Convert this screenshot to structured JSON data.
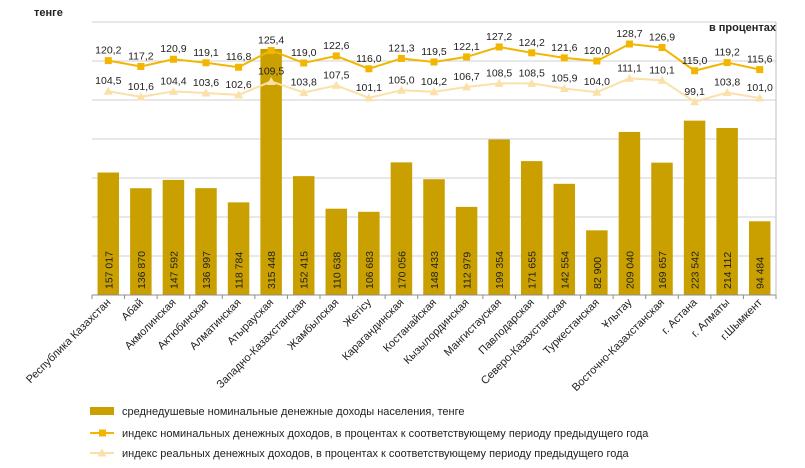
{
  "chart_data": {
    "type": "bar",
    "left_axis_label": "тенге",
    "right_axis_label": "в процентах",
    "categories": [
      "Республика Казахстан",
      "Абай",
      "Акмолинская",
      "Актюбинская",
      "Алматинская",
      "Атырауская",
      "Западно-Казахстанская",
      "Жамбылская",
      "Жетісу",
      "Карагандинская",
      "Костанайская",
      "Кызылординская",
      "Мангистауская",
      "Павлодарская",
      "Северо-Казахстанская",
      "Туркестанская",
      "Ұлытау",
      "Восточно-Казахстанская",
      "г. Астана",
      "г. Алматы",
      "г.Шымкент"
    ],
    "series": [
      {
        "name": "среднедушевые номинальные денежные доходы населения, тенге",
        "kind": "bar",
        "color": "#C9A000",
        "values": [
          157017,
          136870,
          147592,
          136997,
          118784,
          315448,
          152415,
          110638,
          106683,
          170056,
          148433,
          112979,
          199354,
          171655,
          142554,
          82900,
          209040,
          169657,
          223542,
          214112,
          94484
        ],
        "labels": [
          "157 017",
          "136 870",
          "147 592",
          "136 997",
          "118 784",
          "315 448",
          "152 415",
          "110 638",
          "106 683",
          "170 056",
          "148 433",
          "112 979",
          "199 354",
          "171 655",
          "142 554",
          "82 900",
          "209 040",
          "169 657",
          "223 542",
          "214 112",
          "94 484"
        ]
      },
      {
        "name": "индекс номинальных денежных доходов, в процентах к соответствующему периоду предыдущего года",
        "kind": "line",
        "color": "#F2B600",
        "values": [
          120.2,
          117.2,
          120.9,
          119.1,
          116.8,
          125.4,
          119.0,
          122.6,
          116.0,
          121.3,
          119.5,
          122.1,
          127.2,
          124.2,
          121.6,
          120.0,
          128.7,
          126.9,
          115.0,
          119.2,
          115.6
        ],
        "labels": [
          "120,2",
          "117,2",
          "120,9",
          "119,1",
          "116,8",
          "125,4",
          "119,0",
          "122,6",
          "116,0",
          "121,3",
          "119,5",
          "122,1",
          "127,2",
          "124,2",
          "121,6",
          "120,0",
          "128,7",
          "126,9",
          "115,0",
          "119,2",
          "115,6"
        ]
      },
      {
        "name": "индекс реальных денежных доходов, в процентах к соответствующему периоду предыдущего года",
        "kind": "line",
        "color": "#FBE0A8",
        "values": [
          104.5,
          101.6,
          104.4,
          103.6,
          102.6,
          109.5,
          103.8,
          107.5,
          101.1,
          105.0,
          104.2,
          106.7,
          108.5,
          108.5,
          105.9,
          104.0,
          111.1,
          110.1,
          99.1,
          103.8,
          101.0
        ],
        "labels": [
          "104,5",
          "101,6",
          "104,4",
          "103,6",
          "102,6",
          "109,5",
          "103,8",
          "107,5",
          "101,1",
          "105,0",
          "104,2",
          "106,7",
          "108,5",
          "108,5",
          "105,9",
          "104,0",
          "111,1",
          "110,1",
          "99,1",
          "103,8",
          "101,0"
        ]
      }
    ],
    "grid": true,
    "legend_position": "bottom"
  }
}
